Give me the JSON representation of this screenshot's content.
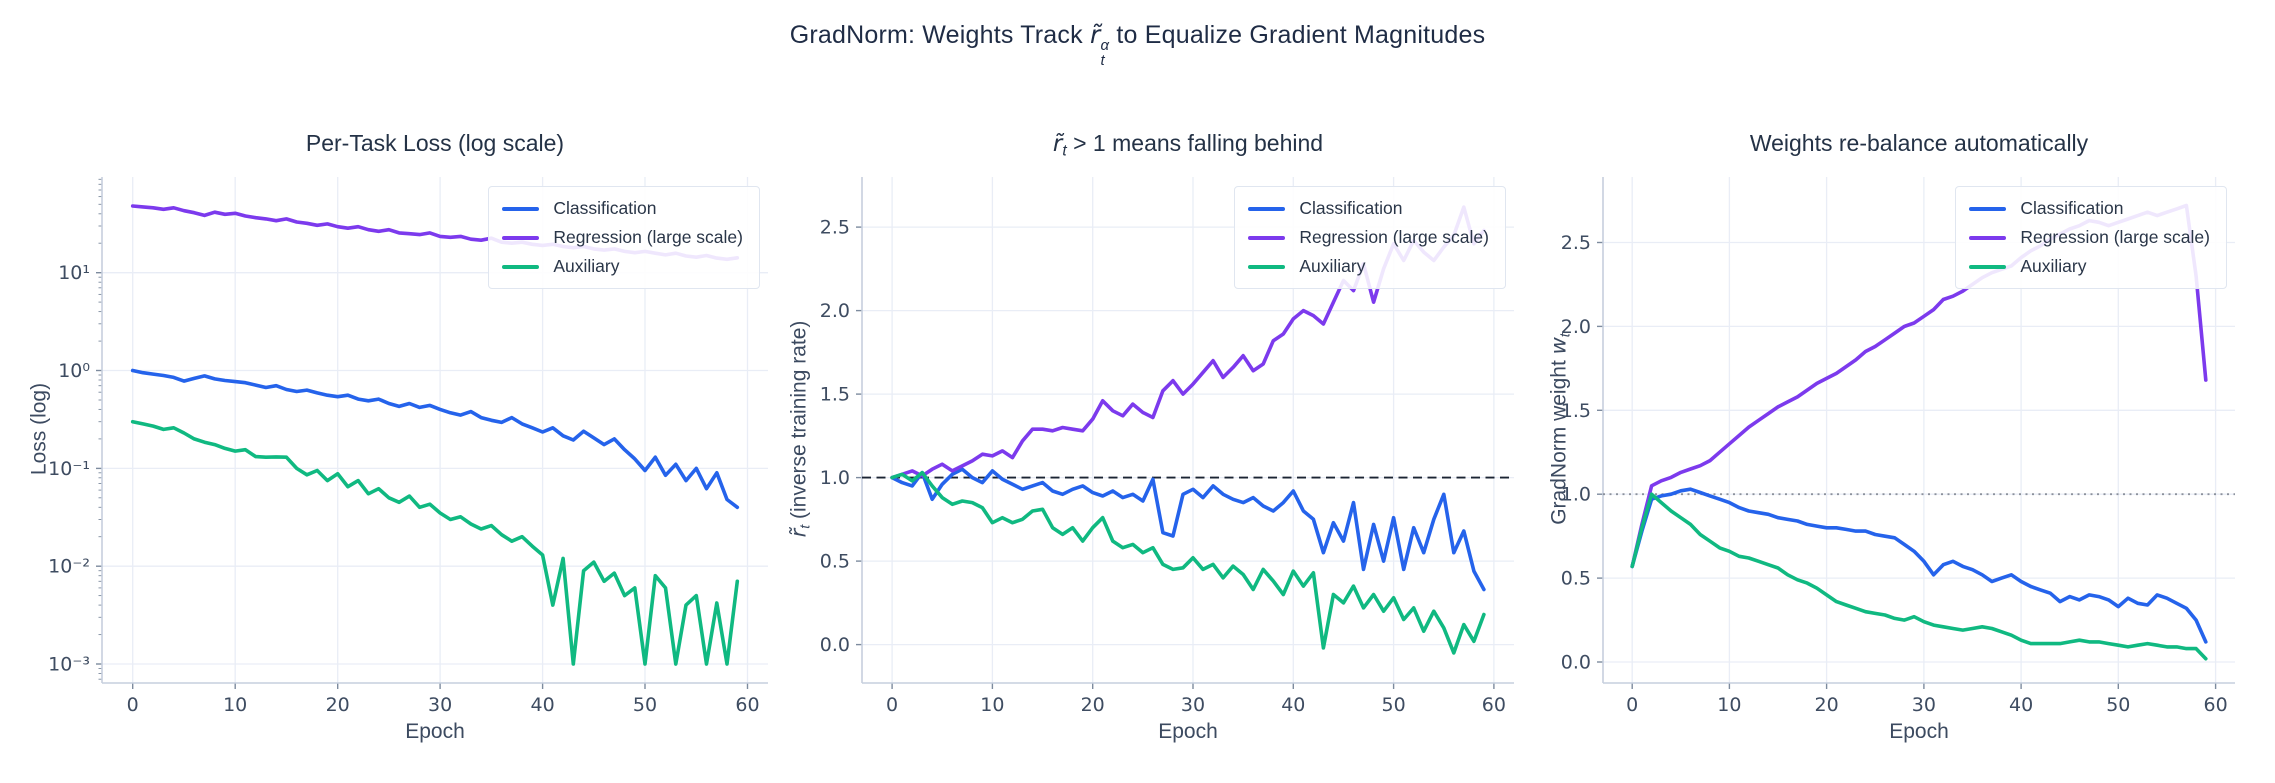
{
  "figure": {
    "title": {
      "prefix": "GradNorm: Weights Track ",
      "math": "r̃",
      "sup": "α",
      "sub": "t",
      "suffix": " to Equalize Gradient Magnitudes"
    }
  },
  "chart_data": [
    {
      "type": "line",
      "title_math": "",
      "title_sub": "",
      "title_rest": "Per-Task Loss (log scale)",
      "xlabel": "Epoch",
      "ylabel_pre": "Loss (log)",
      "ylabel_math": "",
      "ylabel_sub": "",
      "ylabel_post": "",
      "yscale": "log",
      "x_epochs": {
        "start": 0,
        "end": 59,
        "step": 1
      },
      "xlim": [
        -3,
        62
      ],
      "ylim_log10": [
        -3.194,
        1.978
      ],
      "xticks": [
        0,
        10,
        20,
        30,
        40,
        50,
        60
      ],
      "ytick_log10": [
        1,
        0,
        -1,
        -2,
        -3
      ],
      "ytick_labels": [
        "10¹",
        "10⁰",
        "10⁻¹",
        "10⁻²",
        "10⁻³"
      ],
      "grid": true,
      "legend_position": "upper right",
      "series": [
        {
          "name": "Classification",
          "color": "#2563eb",
          "values": [
            1.0,
            0.95,
            0.92,
            0.89,
            0.85,
            0.78,
            0.83,
            0.88,
            0.82,
            0.79,
            0.77,
            0.75,
            0.71,
            0.67,
            0.7,
            0.64,
            0.61,
            0.63,
            0.59,
            0.56,
            0.54,
            0.56,
            0.51,
            0.49,
            0.51,
            0.46,
            0.43,
            0.46,
            0.42,
            0.44,
            0.4,
            0.37,
            0.35,
            0.38,
            0.33,
            0.31,
            0.295,
            0.33,
            0.285,
            0.26,
            0.235,
            0.26,
            0.215,
            0.195,
            0.24,
            0.205,
            0.175,
            0.2,
            0.155,
            0.125,
            0.095,
            0.13,
            0.085,
            0.11,
            0.075,
            0.1,
            0.062,
            0.09,
            0.048,
            0.04
          ]
        },
        {
          "name": "Regression (large scale)",
          "color": "#7c3aed",
          "values": [
            48,
            47,
            46,
            44.5,
            46,
            43,
            41,
            38.5,
            41.5,
            39.5,
            40.5,
            38,
            36.5,
            35.5,
            34,
            35.5,
            33,
            32,
            30.5,
            31.5,
            29.5,
            28.5,
            29.5,
            27.5,
            26.5,
            27.5,
            25.5,
            25,
            24.5,
            25.5,
            23.5,
            23,
            23.5,
            22,
            21.5,
            22.5,
            20.5,
            20,
            20.5,
            19.5,
            19,
            19.5,
            18.5,
            18,
            18.5,
            17.5,
            17,
            17.5,
            16.5,
            16,
            16.5,
            15.8,
            15.2,
            15.8,
            14.8,
            14.4,
            15,
            14.1,
            13.7,
            14.2
          ]
        },
        {
          "name": "Auxiliary",
          "color": "#10b981",
          "values": [
            0.3,
            0.285,
            0.27,
            0.25,
            0.26,
            0.23,
            0.2,
            0.185,
            0.175,
            0.16,
            0.15,
            0.155,
            0.132,
            0.13,
            0.131,
            0.13,
            0.1,
            0.086,
            0.095,
            0.075,
            0.088,
            0.065,
            0.075,
            0.055,
            0.062,
            0.05,
            0.045,
            0.052,
            0.04,
            0.043,
            0.035,
            0.03,
            0.032,
            0.027,
            0.024,
            0.026,
            0.021,
            0.018,
            0.02,
            0.016,
            0.013,
            0.004,
            0.012,
            0.001,
            0.009,
            0.011,
            0.007,
            0.0085,
            0.005,
            0.006,
            0.001,
            0.008,
            0.006,
            0.001,
            0.004,
            0.005,
            0.001,
            0.0042,
            0.001,
            0.007
          ]
        }
      ]
    },
    {
      "type": "line",
      "title_math": "r̃",
      "title_sub": "t",
      "title_rest": " > 1 means falling behind",
      "xlabel": "Epoch",
      "ylabel_pre": "",
      "ylabel_math": "r̃",
      "ylabel_sub": "t",
      "ylabel_post": "  (inverse training rate)",
      "yscale": "linear",
      "x_epochs": {
        "start": 0,
        "end": 59,
        "step": 1
      },
      "xlim": [
        -3,
        62
      ],
      "ylim": [
        -0.23,
        2.8
      ],
      "xticks": [
        0,
        10,
        20,
        30,
        40,
        50,
        60
      ],
      "yticks": [
        0.0,
        0.5,
        1.0,
        1.5,
        2.0,
        2.5
      ],
      "ytick_labels": [
        "0.0",
        "0.5",
        "1.0",
        "1.5",
        "2.0",
        "2.5"
      ],
      "grid": true,
      "legend_position": "upper right",
      "refline": {
        "y": 1.0,
        "style": "dashed",
        "color": "#1b2433"
      },
      "series": [
        {
          "name": "Classification",
          "color": "#2563eb",
          "values": [
            1.0,
            0.97,
            0.95,
            1.03,
            0.87,
            0.96,
            1.02,
            1.05,
            1.0,
            0.97,
            1.04,
            0.99,
            0.96,
            0.93,
            0.95,
            0.97,
            0.92,
            0.9,
            0.93,
            0.95,
            0.91,
            0.89,
            0.92,
            0.88,
            0.9,
            0.86,
            0.99,
            0.67,
            0.65,
            0.9,
            0.93,
            0.88,
            0.95,
            0.9,
            0.87,
            0.85,
            0.88,
            0.83,
            0.8,
            0.85,
            0.92,
            0.8,
            0.75,
            0.55,
            0.73,
            0.62,
            0.85,
            0.45,
            0.72,
            0.5,
            0.76,
            0.45,
            0.7,
            0.55,
            0.75,
            0.9,
            0.55,
            0.68,
            0.44,
            0.33
          ]
        },
        {
          "name": "Regression (large scale)",
          "color": "#7c3aed",
          "values": [
            1.0,
            1.02,
            1.04,
            1.01,
            1.05,
            1.08,
            1.04,
            1.07,
            1.1,
            1.14,
            1.13,
            1.16,
            1.12,
            1.22,
            1.29,
            1.29,
            1.28,
            1.3,
            1.29,
            1.28,
            1.35,
            1.46,
            1.4,
            1.37,
            1.44,
            1.39,
            1.36,
            1.52,
            1.58,
            1.5,
            1.56,
            1.63,
            1.7,
            1.6,
            1.66,
            1.73,
            1.64,
            1.68,
            1.82,
            1.86,
            1.95,
            2.0,
            1.97,
            1.92,
            2.05,
            2.18,
            2.12,
            2.28,
            2.05,
            2.25,
            2.4,
            2.3,
            2.42,
            2.35,
            2.3,
            2.38,
            2.45,
            2.62,
            2.4,
            2.48
          ]
        },
        {
          "name": "Auxiliary",
          "color": "#10b981",
          "values": [
            1.0,
            1.02,
            0.98,
            1.03,
            0.95,
            0.88,
            0.84,
            0.86,
            0.85,
            0.82,
            0.73,
            0.76,
            0.73,
            0.75,
            0.8,
            0.81,
            0.7,
            0.66,
            0.7,
            0.62,
            0.7,
            0.76,
            0.62,
            0.58,
            0.6,
            0.55,
            0.58,
            0.48,
            0.45,
            0.46,
            0.52,
            0.45,
            0.48,
            0.4,
            0.47,
            0.42,
            0.33,
            0.45,
            0.38,
            0.3,
            0.44,
            0.35,
            0.43,
            -0.02,
            0.3,
            0.25,
            0.35,
            0.22,
            0.3,
            0.2,
            0.28,
            0.15,
            0.22,
            0.08,
            0.2,
            0.1,
            -0.05,
            0.12,
            0.02,
            0.18
          ]
        }
      ]
    },
    {
      "type": "line",
      "title_math": "",
      "title_sub": "",
      "title_rest": "Weights re-balance automatically",
      "xlabel": "Epoch",
      "ylabel_pre": "GradNorm weight ",
      "ylabel_math": "w",
      "ylabel_sub": "t",
      "ylabel_post": "",
      "yscale": "linear",
      "x_epochs": {
        "start": 0,
        "end": 59,
        "step": 1
      },
      "xlim": [
        -3,
        62
      ],
      "ylim": [
        -0.125,
        2.89
      ],
      "xticks": [
        0,
        10,
        20,
        30,
        40,
        50,
        60
      ],
      "yticks": [
        0.0,
        0.5,
        1.0,
        1.5,
        2.0,
        2.5
      ],
      "ytick_labels": [
        "0.0",
        "0.5",
        "1.0",
        "1.5",
        "2.0",
        "2.5"
      ],
      "grid": true,
      "legend_position": "upper right",
      "refline": {
        "y": 1.0,
        "style": "dotted",
        "color": "#8b919c"
      },
      "series": [
        {
          "name": "Classification",
          "color": "#2563eb",
          "values": [
            0.57,
            0.78,
            0.97,
            0.99,
            1.0,
            1.02,
            1.03,
            1.01,
            0.99,
            0.97,
            0.95,
            0.92,
            0.9,
            0.89,
            0.88,
            0.86,
            0.85,
            0.84,
            0.82,
            0.81,
            0.8,
            0.8,
            0.79,
            0.78,
            0.78,
            0.76,
            0.75,
            0.74,
            0.7,
            0.66,
            0.6,
            0.52,
            0.58,
            0.6,
            0.57,
            0.55,
            0.52,
            0.48,
            0.5,
            0.52,
            0.48,
            0.45,
            0.43,
            0.41,
            0.36,
            0.39,
            0.37,
            0.4,
            0.39,
            0.37,
            0.33,
            0.38,
            0.35,
            0.34,
            0.4,
            0.38,
            0.35,
            0.32,
            0.25,
            0.12
          ]
        },
        {
          "name": "Regression (large scale)",
          "color": "#7c3aed",
          "values": [
            0.57,
            0.82,
            1.05,
            1.08,
            1.1,
            1.13,
            1.15,
            1.17,
            1.2,
            1.25,
            1.3,
            1.35,
            1.4,
            1.44,
            1.48,
            1.52,
            1.55,
            1.58,
            1.62,
            1.66,
            1.69,
            1.72,
            1.76,
            1.8,
            1.85,
            1.88,
            1.92,
            1.96,
            2.0,
            2.02,
            2.06,
            2.1,
            2.16,
            2.18,
            2.21,
            2.25,
            2.29,
            2.32,
            2.34,
            2.36,
            2.41,
            2.45,
            2.48,
            2.52,
            2.55,
            2.58,
            2.6,
            2.63,
            2.62,
            2.6,
            2.62,
            2.64,
            2.66,
            2.68,
            2.66,
            2.68,
            2.7,
            2.72,
            2.3,
            1.68
          ]
        },
        {
          "name": "Auxiliary",
          "color": "#10b981",
          "values": [
            0.57,
            0.8,
            1.0,
            0.95,
            0.9,
            0.86,
            0.82,
            0.76,
            0.72,
            0.68,
            0.66,
            0.63,
            0.62,
            0.6,
            0.58,
            0.56,
            0.52,
            0.49,
            0.47,
            0.44,
            0.4,
            0.36,
            0.34,
            0.32,
            0.3,
            0.29,
            0.28,
            0.26,
            0.25,
            0.27,
            0.24,
            0.22,
            0.21,
            0.2,
            0.19,
            0.2,
            0.21,
            0.2,
            0.18,
            0.16,
            0.13,
            0.11,
            0.11,
            0.11,
            0.11,
            0.12,
            0.13,
            0.12,
            0.12,
            0.11,
            0.1,
            0.09,
            0.1,
            0.11,
            0.1,
            0.09,
            0.09,
            0.08,
            0.08,
            0.02
          ]
        }
      ]
    }
  ]
}
